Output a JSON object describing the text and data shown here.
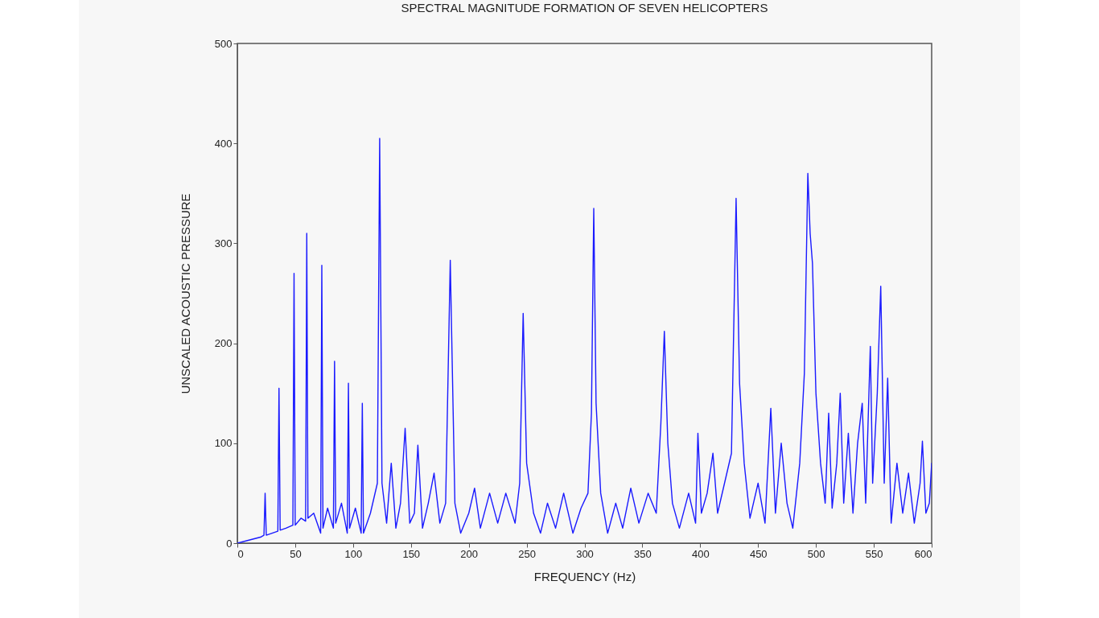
{
  "chart_data": {
    "type": "line",
    "title": "SPECTRAL MAGNITUDE     FORMATION OF SEVEN HELICOPTERS",
    "xlabel": "FREQUENCY (Hz)",
    "ylabel": "UNSCALED ACOUSTIC PRESSURE",
    "xlim": [
      0,
      600
    ],
    "ylim": [
      0,
      500
    ],
    "xticks": [
      0,
      50,
      100,
      150,
      200,
      250,
      300,
      350,
      400,
      450,
      500,
      550,
      600
    ],
    "yticks": [
      0,
      100,
      200,
      300,
      400,
      500
    ],
    "grid": false,
    "marker": "none",
    "line_style": "solid",
    "series": [
      {
        "color": "#1a1aff",
        "x": [
          0,
          10,
          20,
          23,
          24,
          25,
          30,
          35,
          36,
          37,
          42,
          48,
          49,
          50,
          55,
          59,
          60,
          61,
          66,
          72,
          73,
          74,
          78,
          83,
          84,
          85,
          90,
          95,
          96,
          97,
          102,
          107,
          108,
          109,
          115,
          121,
          123,
          125,
          129,
          133,
          137,
          141,
          145,
          149,
          153,
          156,
          160,
          165,
          170,
          175,
          180,
          184,
          188,
          193,
          200,
          205,
          210,
          218,
          225,
          232,
          240,
          244,
          247,
          250,
          256,
          262,
          268,
          275,
          282,
          290,
          297,
          303,
          306,
          308,
          310,
          314,
          320,
          327,
          333,
          340,
          347,
          355,
          362,
          366,
          369,
          372,
          376,
          382,
          390,
          396,
          398,
          401,
          406,
          411,
          415,
          421,
          427,
          431,
          434,
          438,
          443,
          450,
          456,
          461,
          465,
          470,
          475,
          480,
          486,
          490,
          493,
          495,
          497,
          500,
          504,
          508,
          511,
          514,
          518,
          521,
          524,
          528,
          532,
          536,
          540,
          543,
          547,
          549,
          553,
          556,
          559,
          562,
          565,
          570,
          575,
          580,
          585,
          590,
          592,
          595,
          598,
          600
        ],
        "values": [
          0,
          3,
          6,
          8,
          50,
          8,
          10,
          12,
          155,
          13,
          15,
          18,
          270,
          18,
          25,
          22,
          310,
          25,
          30,
          10,
          278,
          15,
          35,
          15,
          182,
          20,
          40,
          10,
          160,
          15,
          35,
          10,
          140,
          10,
          30,
          60,
          405,
          60,
          20,
          80,
          15,
          40,
          115,
          20,
          30,
          98,
          15,
          40,
          70,
          20,
          40,
          283,
          40,
          10,
          30,
          55,
          15,
          50,
          20,
          50,
          20,
          60,
          230,
          80,
          30,
          10,
          40,
          15,
          50,
          10,
          35,
          50,
          130,
          335,
          140,
          50,
          10,
          40,
          15,
          55,
          20,
          50,
          30,
          120,
          212,
          100,
          40,
          15,
          50,
          20,
          110,
          30,
          50,
          90,
          30,
          60,
          90,
          345,
          160,
          80,
          25,
          60,
          20,
          135,
          30,
          100,
          40,
          15,
          80,
          170,
          370,
          310,
          280,
          150,
          80,
          40,
          130,
          35,
          80,
          150,
          40,
          110,
          30,
          100,
          140,
          40,
          197,
          60,
          150,
          257,
          60,
          165,
          20,
          80,
          30,
          70,
          20,
          60,
          102,
          30,
          40,
          80
        ]
      }
    ]
  }
}
